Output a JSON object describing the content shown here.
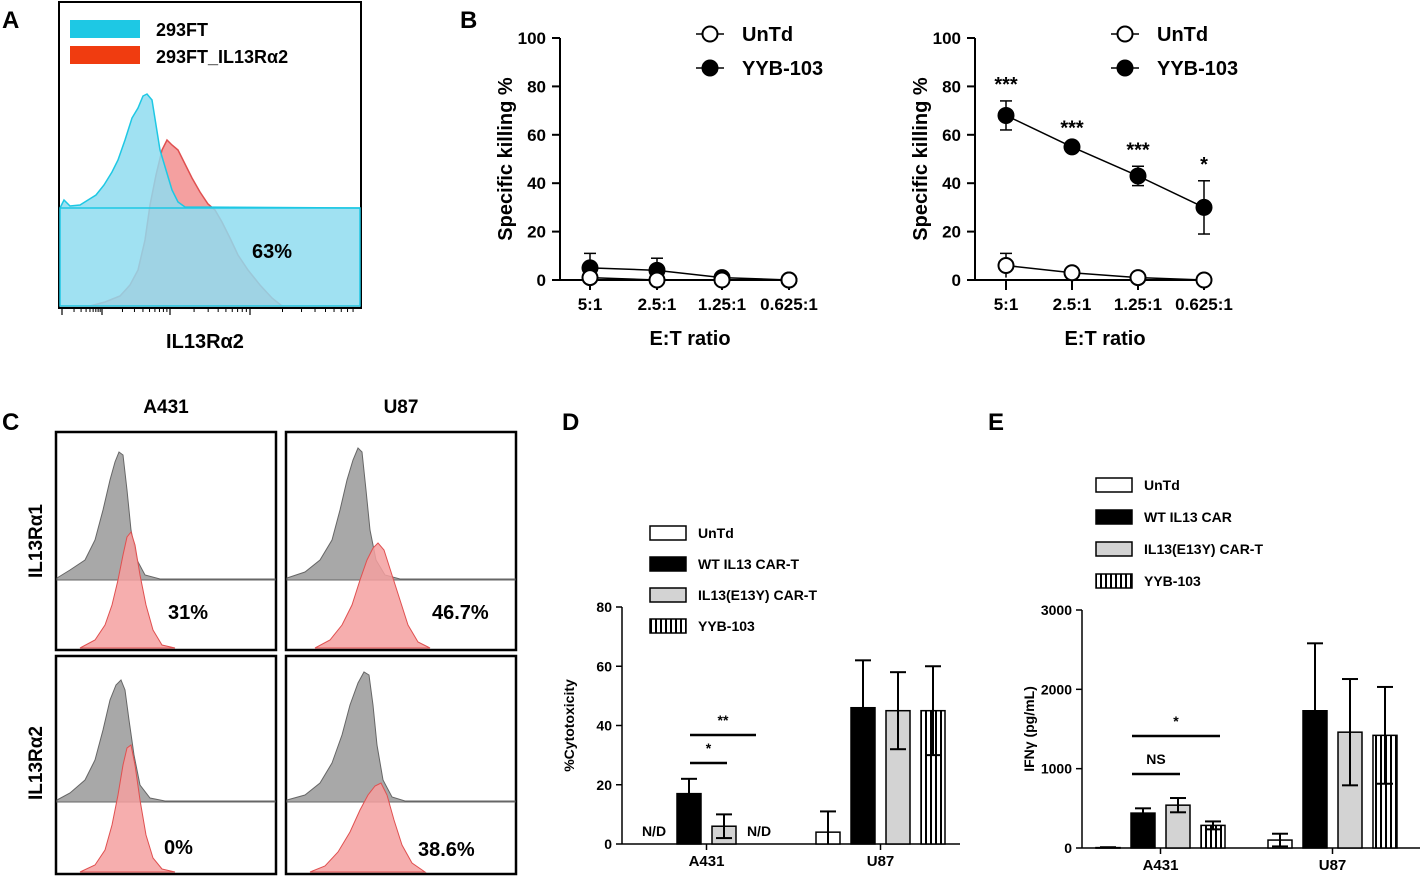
{
  "panel_labels": {
    "a": "A",
    "b": "B",
    "c": "C",
    "d": "D",
    "e": "E"
  },
  "colors": {
    "cyan": "#1ec8e4",
    "red": "#f03c10",
    "cyan_fill": "#8fdcf0",
    "red_fill": "#f4a0a0",
    "red_line": "#e05050",
    "gray_fill": "#a8a8a8",
    "gray_fill2": "#bbbbbb",
    "bar_gray": "#d3d3d3",
    "black": "#000000"
  },
  "panel_a": {
    "legend": [
      "293FT",
      "293FT_IL13Rα2"
    ],
    "xlabel": "IL13Rα2",
    "percent": "63%"
  },
  "panel_c": {
    "columns": [
      "A431",
      "U87"
    ],
    "rows": [
      "IL13Rα1",
      "IL13Rα2"
    ],
    "percents": [
      "31%",
      "46.7%",
      "0%",
      "38.6%"
    ]
  },
  "chart_data": [
    {
      "type": "line",
      "panel": "B-left",
      "xlabel": "E:T ratio",
      "ylabel": "Specific killing %",
      "ylim": [
        0,
        100
      ],
      "yticks": [
        "0",
        "20",
        "40",
        "60",
        "80",
        "100"
      ],
      "categories": [
        "5:1",
        "2.5:1",
        "1.25:1",
        "0.625:1"
      ],
      "series": [
        {
          "name": "UnTd",
          "values": [
            1,
            0,
            0,
            0
          ],
          "err": [
            2,
            2,
            1,
            0
          ]
        },
        {
          "name": "YYB-103",
          "values": [
            5,
            4,
            1,
            0
          ],
          "err": [
            6,
            5,
            1,
            0
          ]
        }
      ],
      "annotations": []
    },
    {
      "type": "line",
      "panel": "B-right",
      "xlabel": "E:T ratio",
      "ylabel": "Specific killing %",
      "ylim": [
        0,
        100
      ],
      "yticks": [
        "0",
        "20",
        "40",
        "60",
        "80",
        "100"
      ],
      "categories": [
        "5:1",
        "2.5:1",
        "1.25:1",
        "0.625:1"
      ],
      "series": [
        {
          "name": "UnTd",
          "values": [
            6,
            3,
            1,
            0
          ],
          "err": [
            5,
            2,
            1,
            0
          ]
        },
        {
          "name": "YYB-103",
          "values": [
            68,
            55,
            43,
            30
          ],
          "err": [
            6,
            1,
            4,
            11
          ]
        }
      ],
      "annotations": [
        "***",
        "***",
        "***",
        "*"
      ]
    },
    {
      "type": "bar",
      "panel": "D",
      "ylabel": "%Cytotoxicity",
      "ylim": [
        0,
        80
      ],
      "yticks": [
        "0",
        "20",
        "40",
        "60",
        "80"
      ],
      "categories": [
        "A431",
        "U87"
      ],
      "series": [
        {
          "name": "UnTd",
          "values": [
            0,
            4
          ],
          "err": [
            0,
            7
          ]
        },
        {
          "name": "WT IL13 CAR-T",
          "values": [
            17,
            46
          ],
          "err": [
            5,
            16
          ]
        },
        {
          "name": "IL13(E13Y) CAR-T",
          "values": [
            6,
            45
          ],
          "err": [
            4,
            13
          ]
        },
        {
          "name": "YYB-103",
          "values": [
            0,
            45
          ],
          "err": [
            0,
            15
          ]
        }
      ],
      "nd_label": "N/D",
      "significance": [
        "*",
        "**"
      ]
    },
    {
      "type": "bar",
      "panel": "E",
      "ylabel": "IFNγ (pg/mL)",
      "ylim": [
        0,
        3000
      ],
      "yticks": [
        "0",
        "1000",
        "2000",
        "3000"
      ],
      "categories": [
        "A431",
        "U87"
      ],
      "series": [
        {
          "name": "UnTd",
          "values": [
            5,
            100
          ],
          "err": [
            5,
            80
          ]
        },
        {
          "name": "WT IL13 CAR",
          "values": [
            440,
            1730
          ],
          "err": [
            60,
            850
          ]
        },
        {
          "name": "IL13(E13Y) CAR-T",
          "values": [
            540,
            1460
          ],
          "err": [
            90,
            670
          ]
        },
        {
          "name": "YYB-103",
          "values": [
            285,
            1420
          ],
          "err": [
            50,
            610
          ]
        }
      ],
      "significance": [
        "NS",
        "*"
      ]
    }
  ]
}
